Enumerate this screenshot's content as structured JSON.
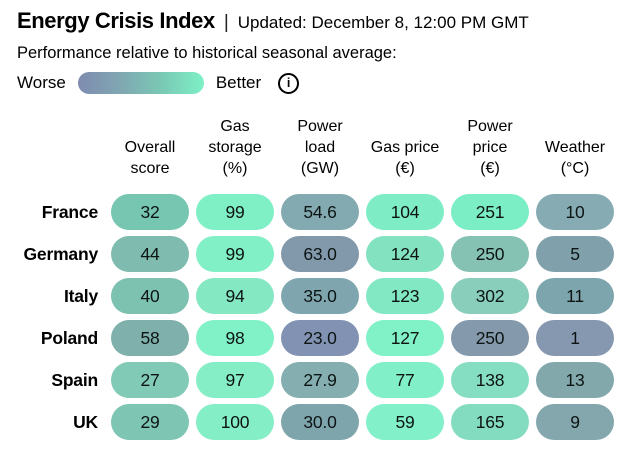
{
  "header": {
    "title": "Energy Crisis Index",
    "separator": "|",
    "updated": "Updated: December 8, 12:00 PM GMT",
    "subtitle": "Performance relative to historical seasonal average:"
  },
  "legend": {
    "worse_label": "Worse",
    "better_label": "Better",
    "info_glyph": "i",
    "gradient_colors": [
      "#7e8bb0",
      "#80a7b2",
      "#7ac9b5",
      "#7ef0c6"
    ]
  },
  "table": {
    "columns": [
      {
        "id": "overall-score",
        "lines": [
          "Overall",
          "score"
        ]
      },
      {
        "id": "gas-storage",
        "lines": [
          "Gas",
          "storage",
          "(%)"
        ]
      },
      {
        "id": "power-load",
        "lines": [
          "Power",
          "load",
          "(GW)"
        ]
      },
      {
        "id": "gas-price",
        "lines": [
          "Gas price",
          "(€)"
        ]
      },
      {
        "id": "power-price",
        "lines": [
          "Power",
          "price",
          "(€)"
        ]
      },
      {
        "id": "weather",
        "lines": [
          "Weather",
          "(°C)"
        ]
      }
    ],
    "rows": [
      {
        "country": "France",
        "cells": [
          {
            "value": "32",
            "color": "#76c6b2"
          },
          {
            "value": "99",
            "color": "#7fefc5"
          },
          {
            "value": "54.6",
            "color": "#83a9b1"
          },
          {
            "value": "104",
            "color": "#7eedc5"
          },
          {
            "value": "251",
            "color": "#7ceec5"
          },
          {
            "value": "10",
            "color": "#86abb3"
          }
        ]
      },
      {
        "country": "Germany",
        "cells": [
          {
            "value": "44",
            "color": "#7fbcaf"
          },
          {
            "value": "99",
            "color": "#82f0c6"
          },
          {
            "value": "63.0",
            "color": "#8299ac"
          },
          {
            "value": "124",
            "color": "#83e2c0"
          },
          {
            "value": "250",
            "color": "#86c2b3"
          },
          {
            "value": "5",
            "color": "#80a1ac"
          }
        ]
      },
      {
        "country": "Italy",
        "cells": [
          {
            "value": "40",
            "color": "#7dc2b1"
          },
          {
            "value": "94",
            "color": "#84e8c2"
          },
          {
            "value": "35.0",
            "color": "#7fa6ae"
          },
          {
            "value": "123",
            "color": "#81e8c3"
          },
          {
            "value": "302",
            "color": "#88ceba"
          },
          {
            "value": "11",
            "color": "#7da5ad"
          }
        ]
      },
      {
        "country": "Poland",
        "cells": [
          {
            "value": "58",
            "color": "#7fb0ab"
          },
          {
            "value": "98",
            "color": "#81f2c7"
          },
          {
            "value": "23.0",
            "color": "#8292b2"
          },
          {
            "value": "127",
            "color": "#81f2c8"
          },
          {
            "value": "250",
            "color": "#8499ab"
          },
          {
            "value": "1",
            "color": "#8697b0"
          }
        ]
      },
      {
        "country": "Spain",
        "cells": [
          {
            "value": "27",
            "color": "#81cab6"
          },
          {
            "value": "97",
            "color": "#86eec6"
          },
          {
            "value": "27.9",
            "color": "#84aeb0"
          },
          {
            "value": "77",
            "color": "#81f0c8"
          },
          {
            "value": "138",
            "color": "#86dec2"
          },
          {
            "value": "13",
            "color": "#83a8ab"
          }
        ]
      },
      {
        "country": "UK",
        "cells": [
          {
            "value": "29",
            "color": "#7ec5b3"
          },
          {
            "value": "100",
            "color": "#84eec6"
          },
          {
            "value": "30.0",
            "color": "#7ea4ac"
          },
          {
            "value": "59",
            "color": "#82f0c8"
          },
          {
            "value": "165",
            "color": "#84dcc0"
          },
          {
            "value": "9",
            "color": "#83a7ad"
          }
        ]
      }
    ]
  },
  "chart_data": {
    "type": "heatmap",
    "title": "Energy Crisis Index",
    "updated": "Updated: December 8, 12:00 PM GMT",
    "subtitle": "Performance relative to historical seasonal average:",
    "legend": {
      "worse": "Worse",
      "better": "Better"
    },
    "color_scale": {
      "worse_end": "#7e8bb0",
      "better_end": "#7ef0c6"
    },
    "columns": [
      "Overall score",
      "Gas storage (%)",
      "Power load (GW)",
      "Gas price (€)",
      "Power price (€)",
      "Weather (°C)"
    ],
    "rows": [
      "France",
      "Germany",
      "Italy",
      "Poland",
      "Spain",
      "UK"
    ],
    "values": [
      [
        32,
        99,
        54.6,
        104,
        251,
        10
      ],
      [
        44,
        99,
        63.0,
        124,
        250,
        5
      ],
      [
        40,
        94,
        35.0,
        123,
        302,
        11
      ],
      [
        58,
        98,
        23.0,
        127,
        250,
        1
      ],
      [
        27,
        97,
        27.9,
        77,
        138,
        13
      ],
      [
        29,
        100,
        30.0,
        59,
        165,
        9
      ]
    ]
  }
}
